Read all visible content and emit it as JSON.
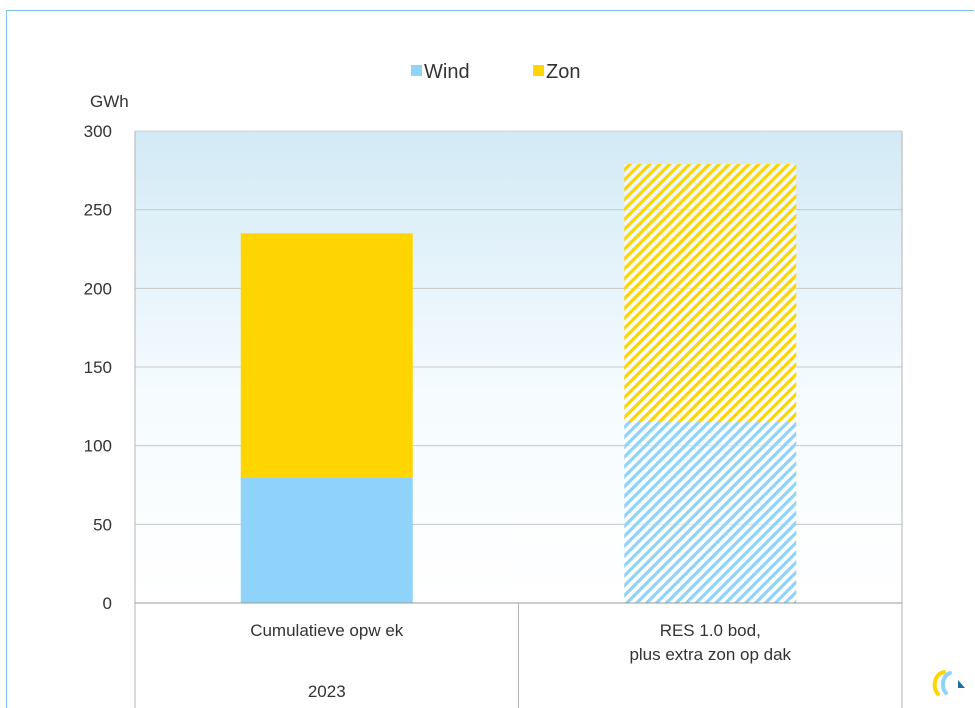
{
  "chart_data": {
    "type": "bar",
    "stacked": true,
    "ylabel": "GWh",
    "ylim": [
      0,
      300
    ],
    "yticks": [
      0,
      50,
      100,
      150,
      200,
      250,
      300
    ],
    "grid": true,
    "legend": {
      "position": "top",
      "entries": [
        "Wind",
        "Zon"
      ]
    },
    "categories": [
      {
        "lines": [
          "Cumulatieve opw ek"
        ],
        "hatched": false
      },
      {
        "lines": [
          "RES 1.0 bod,",
          "plus extra zon op dak"
        ],
        "hatched": true
      }
    ],
    "group_label": "2023",
    "series": [
      {
        "name": "Wind",
        "color": "#8fd3fb",
        "values": [
          80,
          115
        ]
      },
      {
        "name": "Zon",
        "color": "#ffd500",
        "values": [
          155,
          164
        ]
      }
    ]
  },
  "logo": {
    "icon": "logo-icon",
    "colors": [
      "#ffd500",
      "#8fd3fb",
      "#1f6f9e"
    ]
  }
}
